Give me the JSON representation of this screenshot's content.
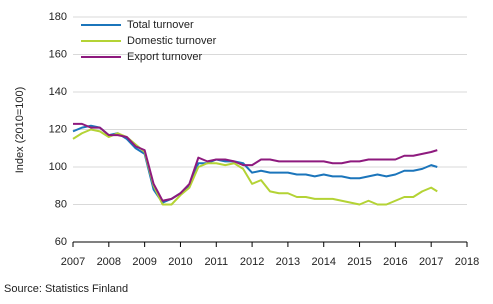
{
  "chart_data": {
    "type": "line",
    "y_label": "Index (2010=100)",
    "source": "Source: Statistics Finland",
    "x": [
      2007,
      2007.25,
      2007.5,
      2007.75,
      2008,
      2008.25,
      2008.5,
      2008.75,
      2009,
      2009.25,
      2009.5,
      2009.75,
      2010,
      2010.25,
      2010.5,
      2010.75,
      2011,
      2011.25,
      2011.5,
      2011.75,
      2012,
      2012.25,
      2012.5,
      2012.75,
      2013,
      2013.25,
      2013.5,
      2013.75,
      2014,
      2014.25,
      2014.5,
      2014.75,
      2015,
      2015.25,
      2015.5,
      2015.75,
      2016,
      2016.25,
      2016.5,
      2016.75,
      2017,
      2017.17
    ],
    "series": [
      {
        "name": "Total turnover",
        "color": "#1b75bb",
        "values": [
          119,
          121,
          122,
          121,
          117,
          118,
          115,
          110,
          107,
          88,
          81,
          83,
          86,
          90,
          102,
          102,
          104,
          103,
          103,
          102,
          97,
          98,
          97,
          97,
          97,
          96,
          96,
          95,
          96,
          95,
          95,
          94,
          94,
          95,
          96,
          95,
          96,
          98,
          98,
          99,
          101,
          100
        ]
      },
      {
        "name": "Domestic turnover",
        "color": "#b4d335",
        "values": [
          115,
          118,
          120,
          119,
          116,
          118,
          116,
          112,
          108,
          90,
          80,
          80,
          85,
          89,
          100,
          102,
          102,
          101,
          102,
          99,
          91,
          93,
          87,
          86,
          86,
          84,
          84,
          83,
          83,
          83,
          82,
          81,
          80,
          82,
          80,
          80,
          82,
          84,
          84,
          87,
          89,
          87
        ]
      },
      {
        "name": "Export turnover",
        "color": "#8e1a7e",
        "values": [
          123,
          123,
          121,
          121,
          117,
          117,
          116,
          111,
          109,
          91,
          82,
          83,
          86,
          91,
          105,
          103,
          104,
          104,
          103,
          101,
          101,
          104,
          104,
          103,
          103,
          103,
          103,
          103,
          103,
          102,
          102,
          103,
          103,
          104,
          104,
          104,
          104,
          106,
          106,
          107,
          108,
          109
        ]
      }
    ],
    "xlim": [
      2007,
      2018
    ],
    "xticks": [
      2007,
      2008,
      2009,
      2010,
      2011,
      2012,
      2013,
      2014,
      2015,
      2016,
      2017,
      2018
    ],
    "ylim": [
      60,
      180
    ],
    "yticks": [
      60,
      80,
      100,
      120,
      140,
      160,
      180
    ],
    "grid": true,
    "legend": "upper left"
  }
}
